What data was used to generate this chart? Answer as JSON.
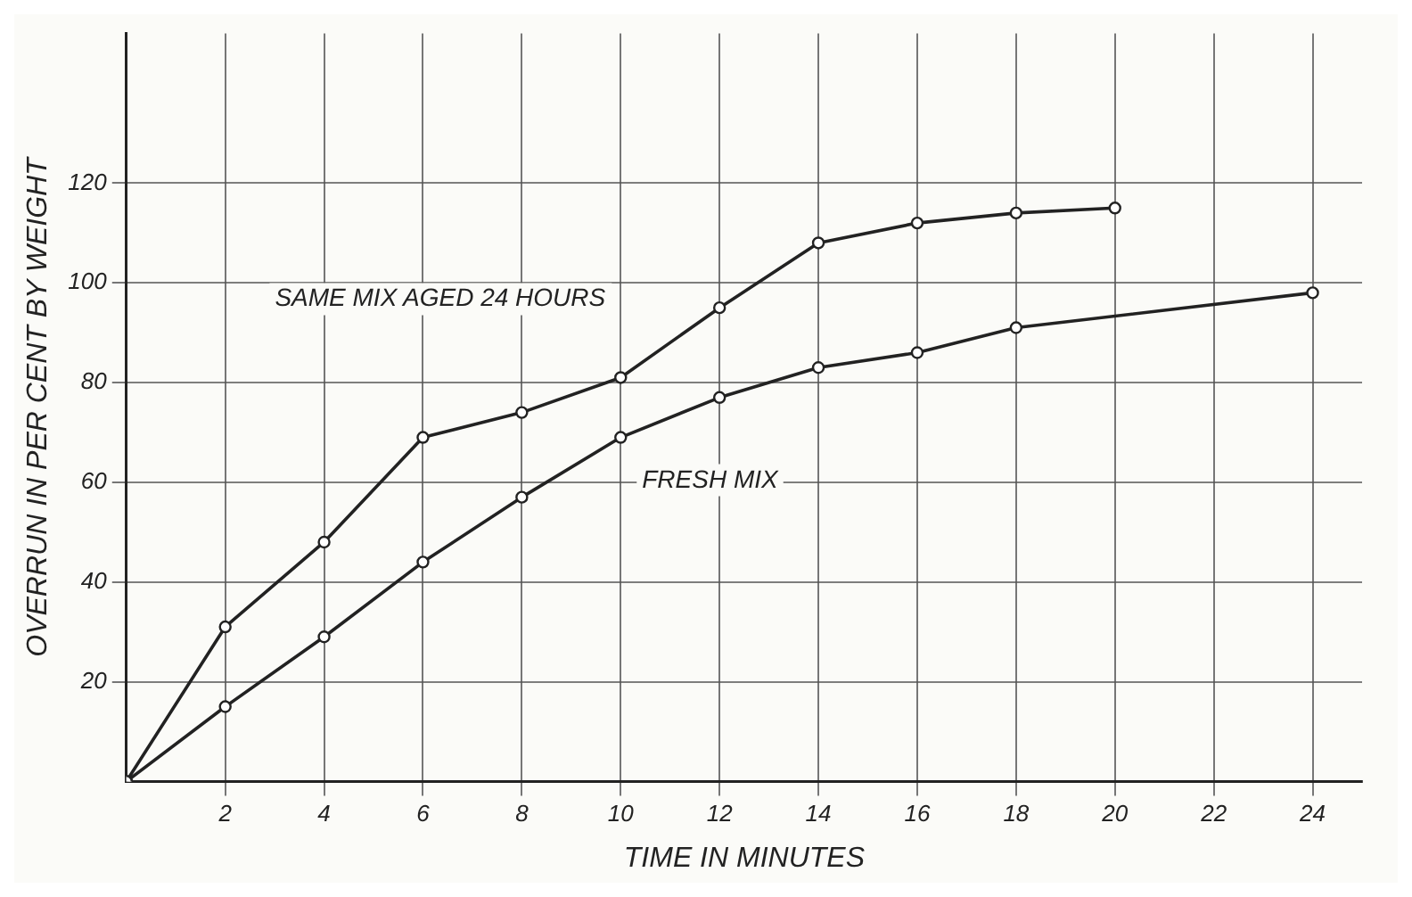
{
  "chart_data": {
    "type": "line",
    "xlabel": "TIME IN MINUTES",
    "ylabel": "OVERRUN IN PER CENT BY WEIGHT",
    "xlim": [
      0,
      25
    ],
    "ylim": [
      0,
      150
    ],
    "xticks": [
      2,
      4,
      6,
      8,
      10,
      12,
      14,
      16,
      18,
      20,
      22,
      24
    ],
    "yticks": [
      20,
      40,
      60,
      80,
      100,
      120
    ],
    "grid": true,
    "legend": false,
    "marker": "circle",
    "line_style": "solid",
    "series": [
      {
        "name": "SAME MIX AGED 24 HOURS",
        "color": "#222222",
        "x": [
          0,
          2,
          4,
          6,
          8,
          10,
          12,
          14,
          16,
          18,
          20
        ],
        "values": [
          0,
          31,
          48,
          69,
          74,
          81,
          95,
          108,
          112,
          114,
          115
        ]
      },
      {
        "name": "FRESH MIX",
        "color": "#222222",
        "x": [
          0,
          2,
          4,
          6,
          8,
          10,
          12,
          14,
          16,
          18,
          24
        ],
        "values": [
          0,
          15,
          29,
          44,
          57,
          69,
          77,
          83,
          86,
          91,
          98
        ]
      }
    ]
  }
}
